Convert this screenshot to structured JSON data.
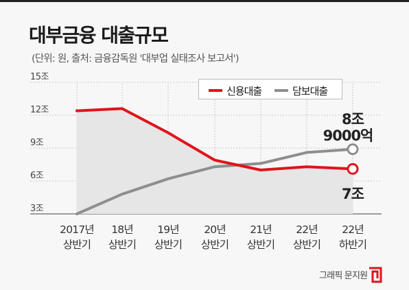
{
  "header": {
    "title": "대부금융 대출규모",
    "subtitle": "(단위: 원, 출처: 금융감독원 '대부업 실태조사 보고서')"
  },
  "footer": {
    "credit": "그래픽 문지원"
  },
  "colors": {
    "red": "#e1131b",
    "gray": "#8e8e8e",
    "fill": "#e6e6e6",
    "grid": "#c9c9c9"
  },
  "chart_data": {
    "type": "line",
    "title": "대부금융 대출규모",
    "categories": [
      [
        "2017년",
        "상반기"
      ],
      [
        "18년",
        "상반기"
      ],
      [
        "19년",
        "상반기"
      ],
      [
        "20년",
        "상반기"
      ],
      [
        "21년",
        "상반기"
      ],
      [
        "22년",
        "상반기"
      ],
      [
        "22년",
        "하반기"
      ]
    ],
    "y_ticks": [
      3,
      6,
      9,
      12,
      15
    ],
    "y_tick_labels": [
      "3조",
      "6조",
      "9조",
      "12조",
      "15조"
    ],
    "ylim": [
      3,
      15
    ],
    "series": [
      {
        "name": "신용대출",
        "color": "#e1131b",
        "values": [
          12.4,
          12.6,
          10.4,
          7.9,
          7.0,
          7.3,
          7.1
        ]
      },
      {
        "name": "담보대출",
        "color": "#8e8e8e",
        "values": [
          3.0,
          4.8,
          6.2,
          7.3,
          7.6,
          8.6,
          8.9
        ]
      }
    ],
    "annotations": {
      "gray_end": [
        "8조",
        "9000억"
      ],
      "red_end": "7조"
    },
    "legend_position": "top-right",
    "grid": true
  }
}
